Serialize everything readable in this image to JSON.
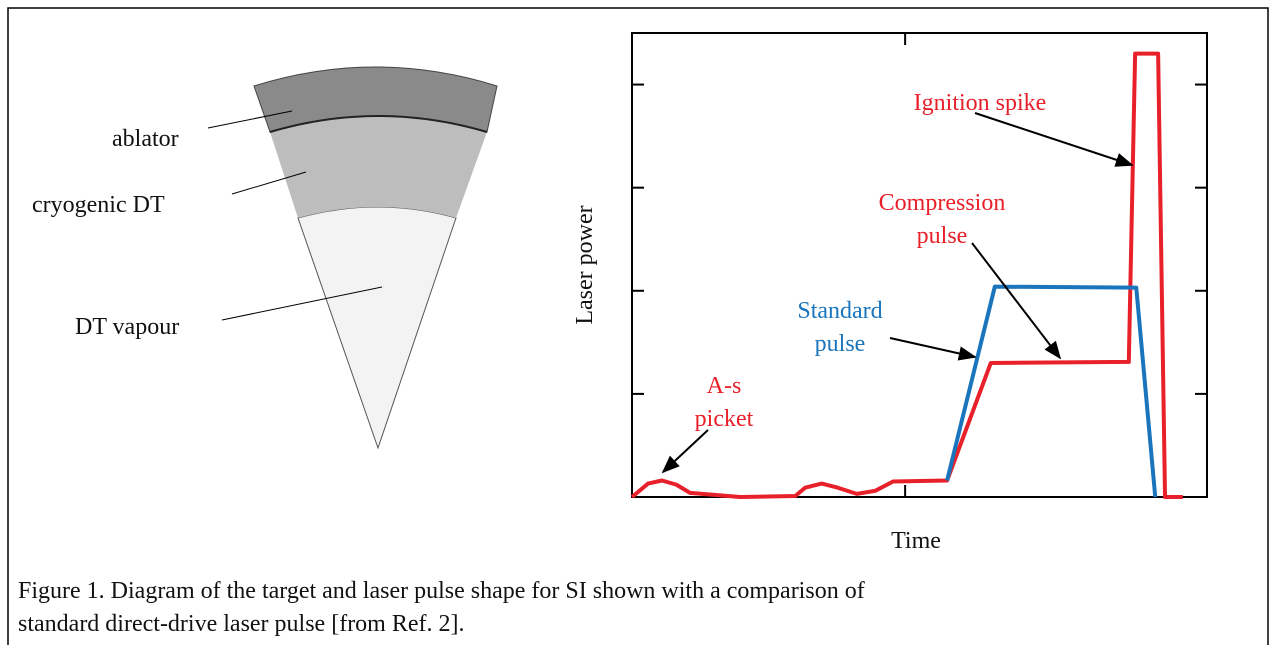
{
  "diagram": {
    "labels": [
      "ablator",
      "cryogenic DT",
      "DT vapour"
    ]
  },
  "chart_data": {
    "type": "line",
    "xlabel": "Time",
    "ylabel": "Laser power",
    "xlim": [
      0,
      10
    ],
    "ylim": [
      0,
      4.5
    ],
    "xticks": [
      4.75
    ],
    "yticks": [
      1,
      2,
      3,
      4
    ],
    "series": [
      {
        "color": "#e8202a",
        "x": [
          0,
          0.28,
          0.52,
          0.77,
          1.01,
          1.88,
          2.84,
          3.01,
          3.3,
          3.58,
          3.91,
          4.23,
          4.54,
          5.48,
          6.24,
          8.64,
          8.75,
          9.15,
          9.27,
          9.58
        ],
        "values": [
          0,
          0.13,
          0.16,
          0.12,
          0.04,
          0,
          0.01,
          0.09,
          0.13,
          0.09,
          0.03,
          0.06,
          0.15,
          0.16,
          1.3,
          1.31,
          4.3,
          4.3,
          0,
          0
        ]
      },
      {
        "color": "#1a75bc",
        "x": [
          5.48,
          6.31,
          8.77,
          9.1
        ],
        "values": [
          0.16,
          2.04,
          2.03,
          0
        ]
      }
    ],
    "annotations": [
      {
        "lines": [
          "Ignition spike"
        ],
        "color": "#e8202a"
      },
      {
        "lines": [
          "Compression",
          "pulse"
        ],
        "color": "#e8202a"
      },
      {
        "lines": [
          "Standard",
          "pulse"
        ],
        "color": "#1a75bc"
      },
      {
        "lines": [
          "A-s",
          "picket"
        ],
        "color": "#e8202a"
      }
    ]
  },
  "caption": [
    "Figure 1. Diagram of the target and laser pulse shape for SI shown with a comparison of",
    "standard direct-drive laser pulse [from Ref. 2]."
  ]
}
